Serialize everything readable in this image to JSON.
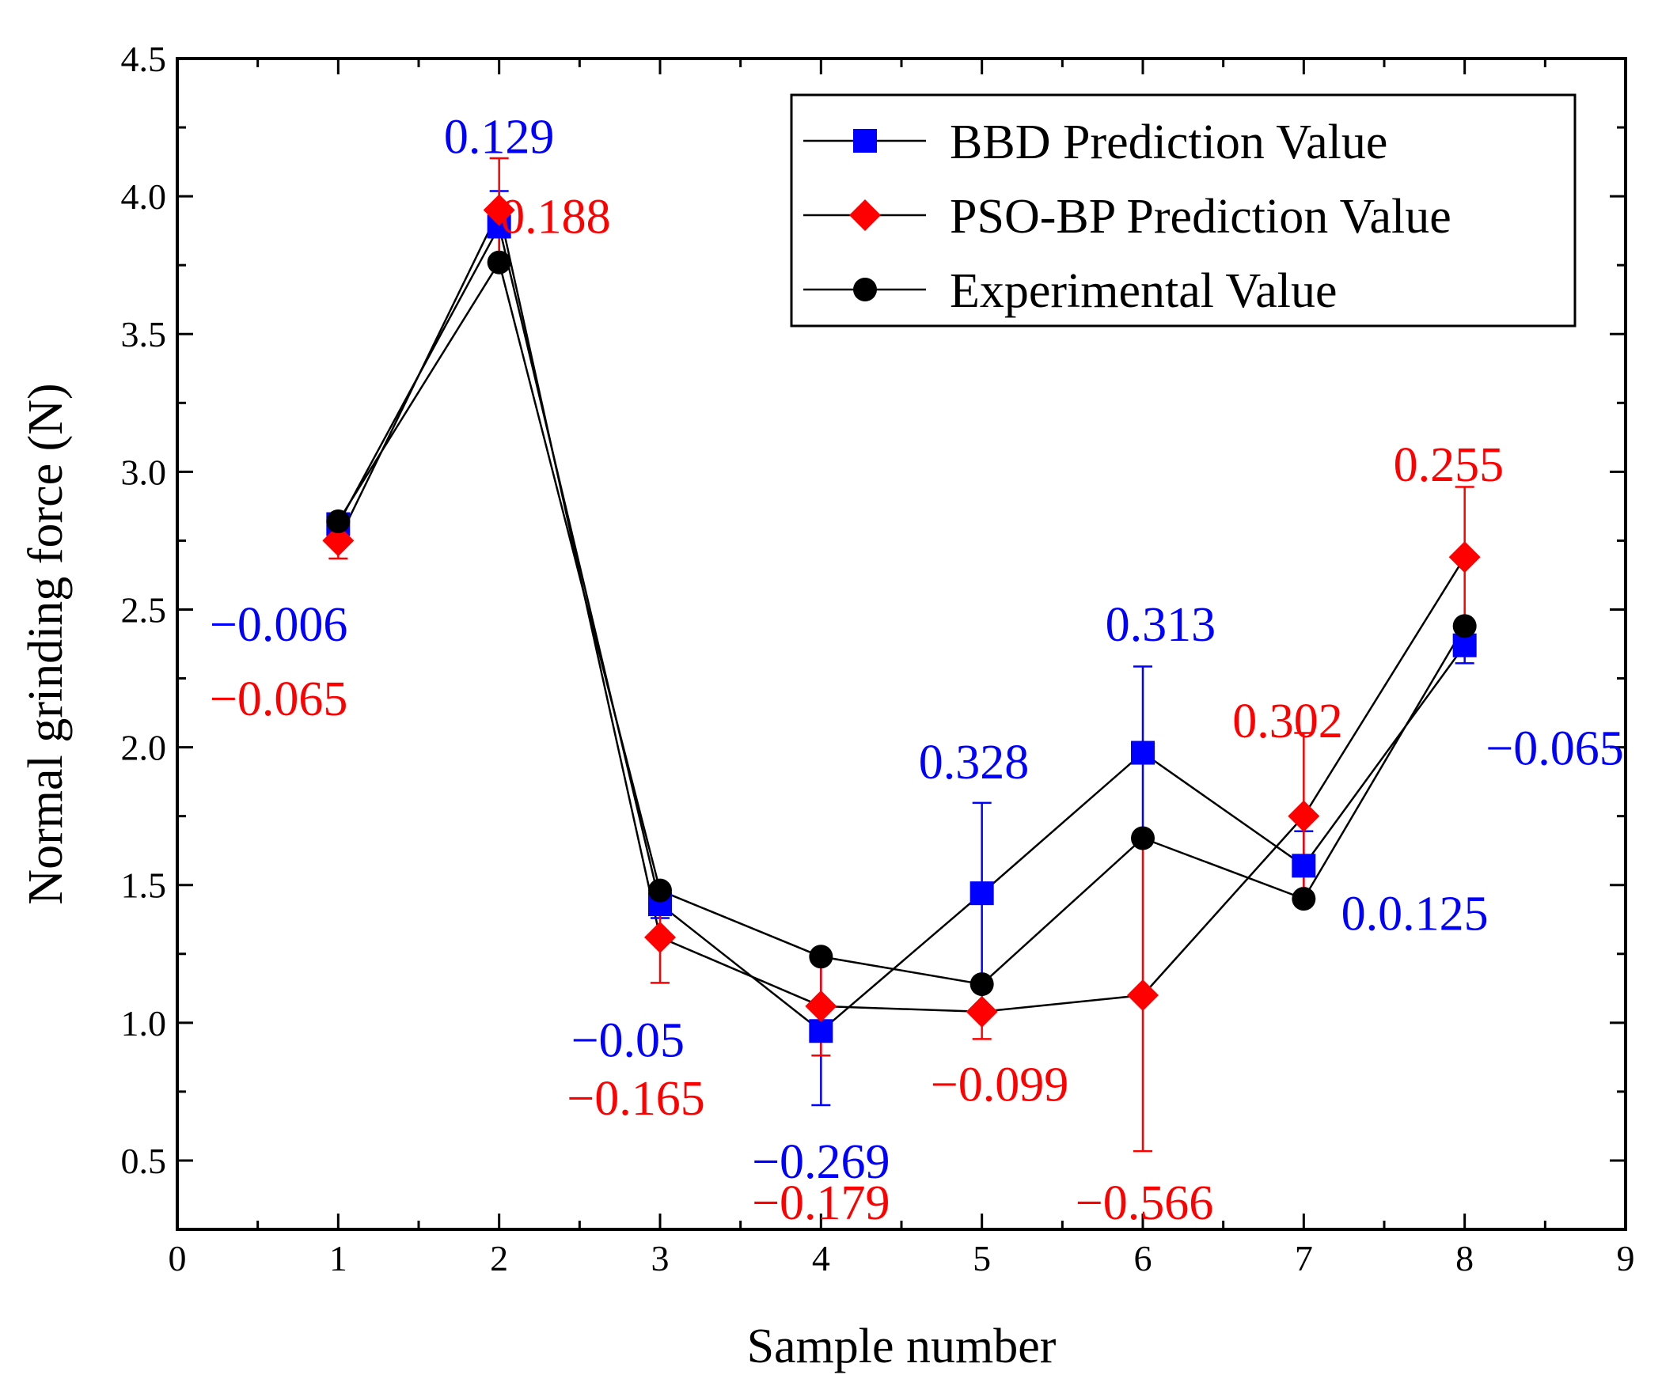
{
  "chart_data": {
    "type": "line",
    "title": "",
    "xlabel": "Sample number",
    "ylabel": "Normal grinding force (N)",
    "xlim": [
      0,
      9
    ],
    "ylim": [
      0.25,
      4.5
    ],
    "x_ticks": [
      0,
      1,
      2,
      3,
      4,
      5,
      6,
      7,
      8,
      9
    ],
    "x_tick_labels": [
      "0",
      "1",
      "2",
      "3",
      "4",
      "5",
      "6",
      "7",
      "8",
      "9"
    ],
    "y_ticks": [
      0.5,
      1.0,
      1.5,
      2.0,
      2.5,
      3.0,
      3.5,
      4.0,
      4.5
    ],
    "y_tick_labels": [
      "0.5",
      "1.0",
      "1.5",
      "2.0",
      "2.5",
      "3.0",
      "3.5",
      "4.0",
      "4.5"
    ],
    "grid": false,
    "legend_position": "top-right",
    "series": [
      {
        "name": "BBD Prediction Value",
        "marker": "square",
        "color": "#0000ff",
        "x": [
          1,
          2,
          3,
          4,
          5,
          6,
          7,
          8
        ],
        "values": [
          2.81,
          3.89,
          1.43,
          0.97,
          1.47,
          1.98,
          1.57,
          2.37
        ],
        "error": [
          0.006,
          0.129,
          0.05,
          0.269,
          0.328,
          0.313,
          0.125,
          0.065
        ]
      },
      {
        "name": "PSO-BP Prediction Value",
        "marker": "diamond",
        "color": "#ff0000",
        "x": [
          1,
          2,
          3,
          4,
          5,
          6,
          7,
          8
        ],
        "values": [
          2.75,
          3.95,
          1.31,
          1.06,
          1.04,
          1.1,
          1.75,
          2.69
        ],
        "error": [
          0.065,
          0.188,
          0.165,
          0.179,
          0.099,
          0.566,
          0.302,
          0.255
        ]
      },
      {
        "name": "Experimental Value",
        "marker": "circle",
        "color": "#000000",
        "x": [
          1,
          2,
          3,
          4,
          5,
          6,
          7,
          8
        ],
        "values": [
          2.82,
          3.76,
          1.48,
          1.24,
          1.14,
          1.67,
          1.45,
          2.44
        ]
      }
    ],
    "annotations": [
      {
        "text": "0.129",
        "x": 2,
        "y": 4.22,
        "color": "#0000ff"
      },
      {
        "text": "0.188",
        "x": 2.35,
        "y": 3.93,
        "color": "#ff0000"
      },
      {
        "text": "−0.006",
        "x": 0.63,
        "y": 2.45,
        "color": "#0000ff"
      },
      {
        "text": "−0.065",
        "x": 0.63,
        "y": 2.18,
        "color": "#ff0000"
      },
      {
        "text": "−0.05",
        "x": 2.8,
        "y": 0.94,
        "color": "#0000ff"
      },
      {
        "text": "−0.165",
        "x": 2.85,
        "y": 0.73,
        "color": "#ff0000"
      },
      {
        "text": "−0.269",
        "x": 4.0,
        "y": 0.5,
        "color": "#0000ff"
      },
      {
        "text": "−0.179",
        "x": 4.0,
        "y": 0.35,
        "color": "#ff0000"
      },
      {
        "text": "0.328",
        "x": 4.95,
        "y": 1.95,
        "color": "#0000ff"
      },
      {
        "text": "−0.099",
        "x": 5.11,
        "y": 0.78,
        "color": "#ff0000"
      },
      {
        "text": "0.313",
        "x": 6.11,
        "y": 2.45,
        "color": "#0000ff"
      },
      {
        "text": "−0.566",
        "x": 6.01,
        "y": 0.35,
        "color": "#ff0000"
      },
      {
        "text": "0.302",
        "x": 6.9,
        "y": 2.1,
        "color": "#ff0000"
      },
      {
        "text": "0.255",
        "x": 7.9,
        "y": 3.03,
        "color": "#ff0000"
      },
      {
        "text": "−0.065",
        "x": 8.56,
        "y": 2.0,
        "color": "#0000ff"
      },
      {
        "text": "0.0.125",
        "x": 7.69,
        "y": 1.4,
        "color": "#0000ff"
      }
    ]
  }
}
